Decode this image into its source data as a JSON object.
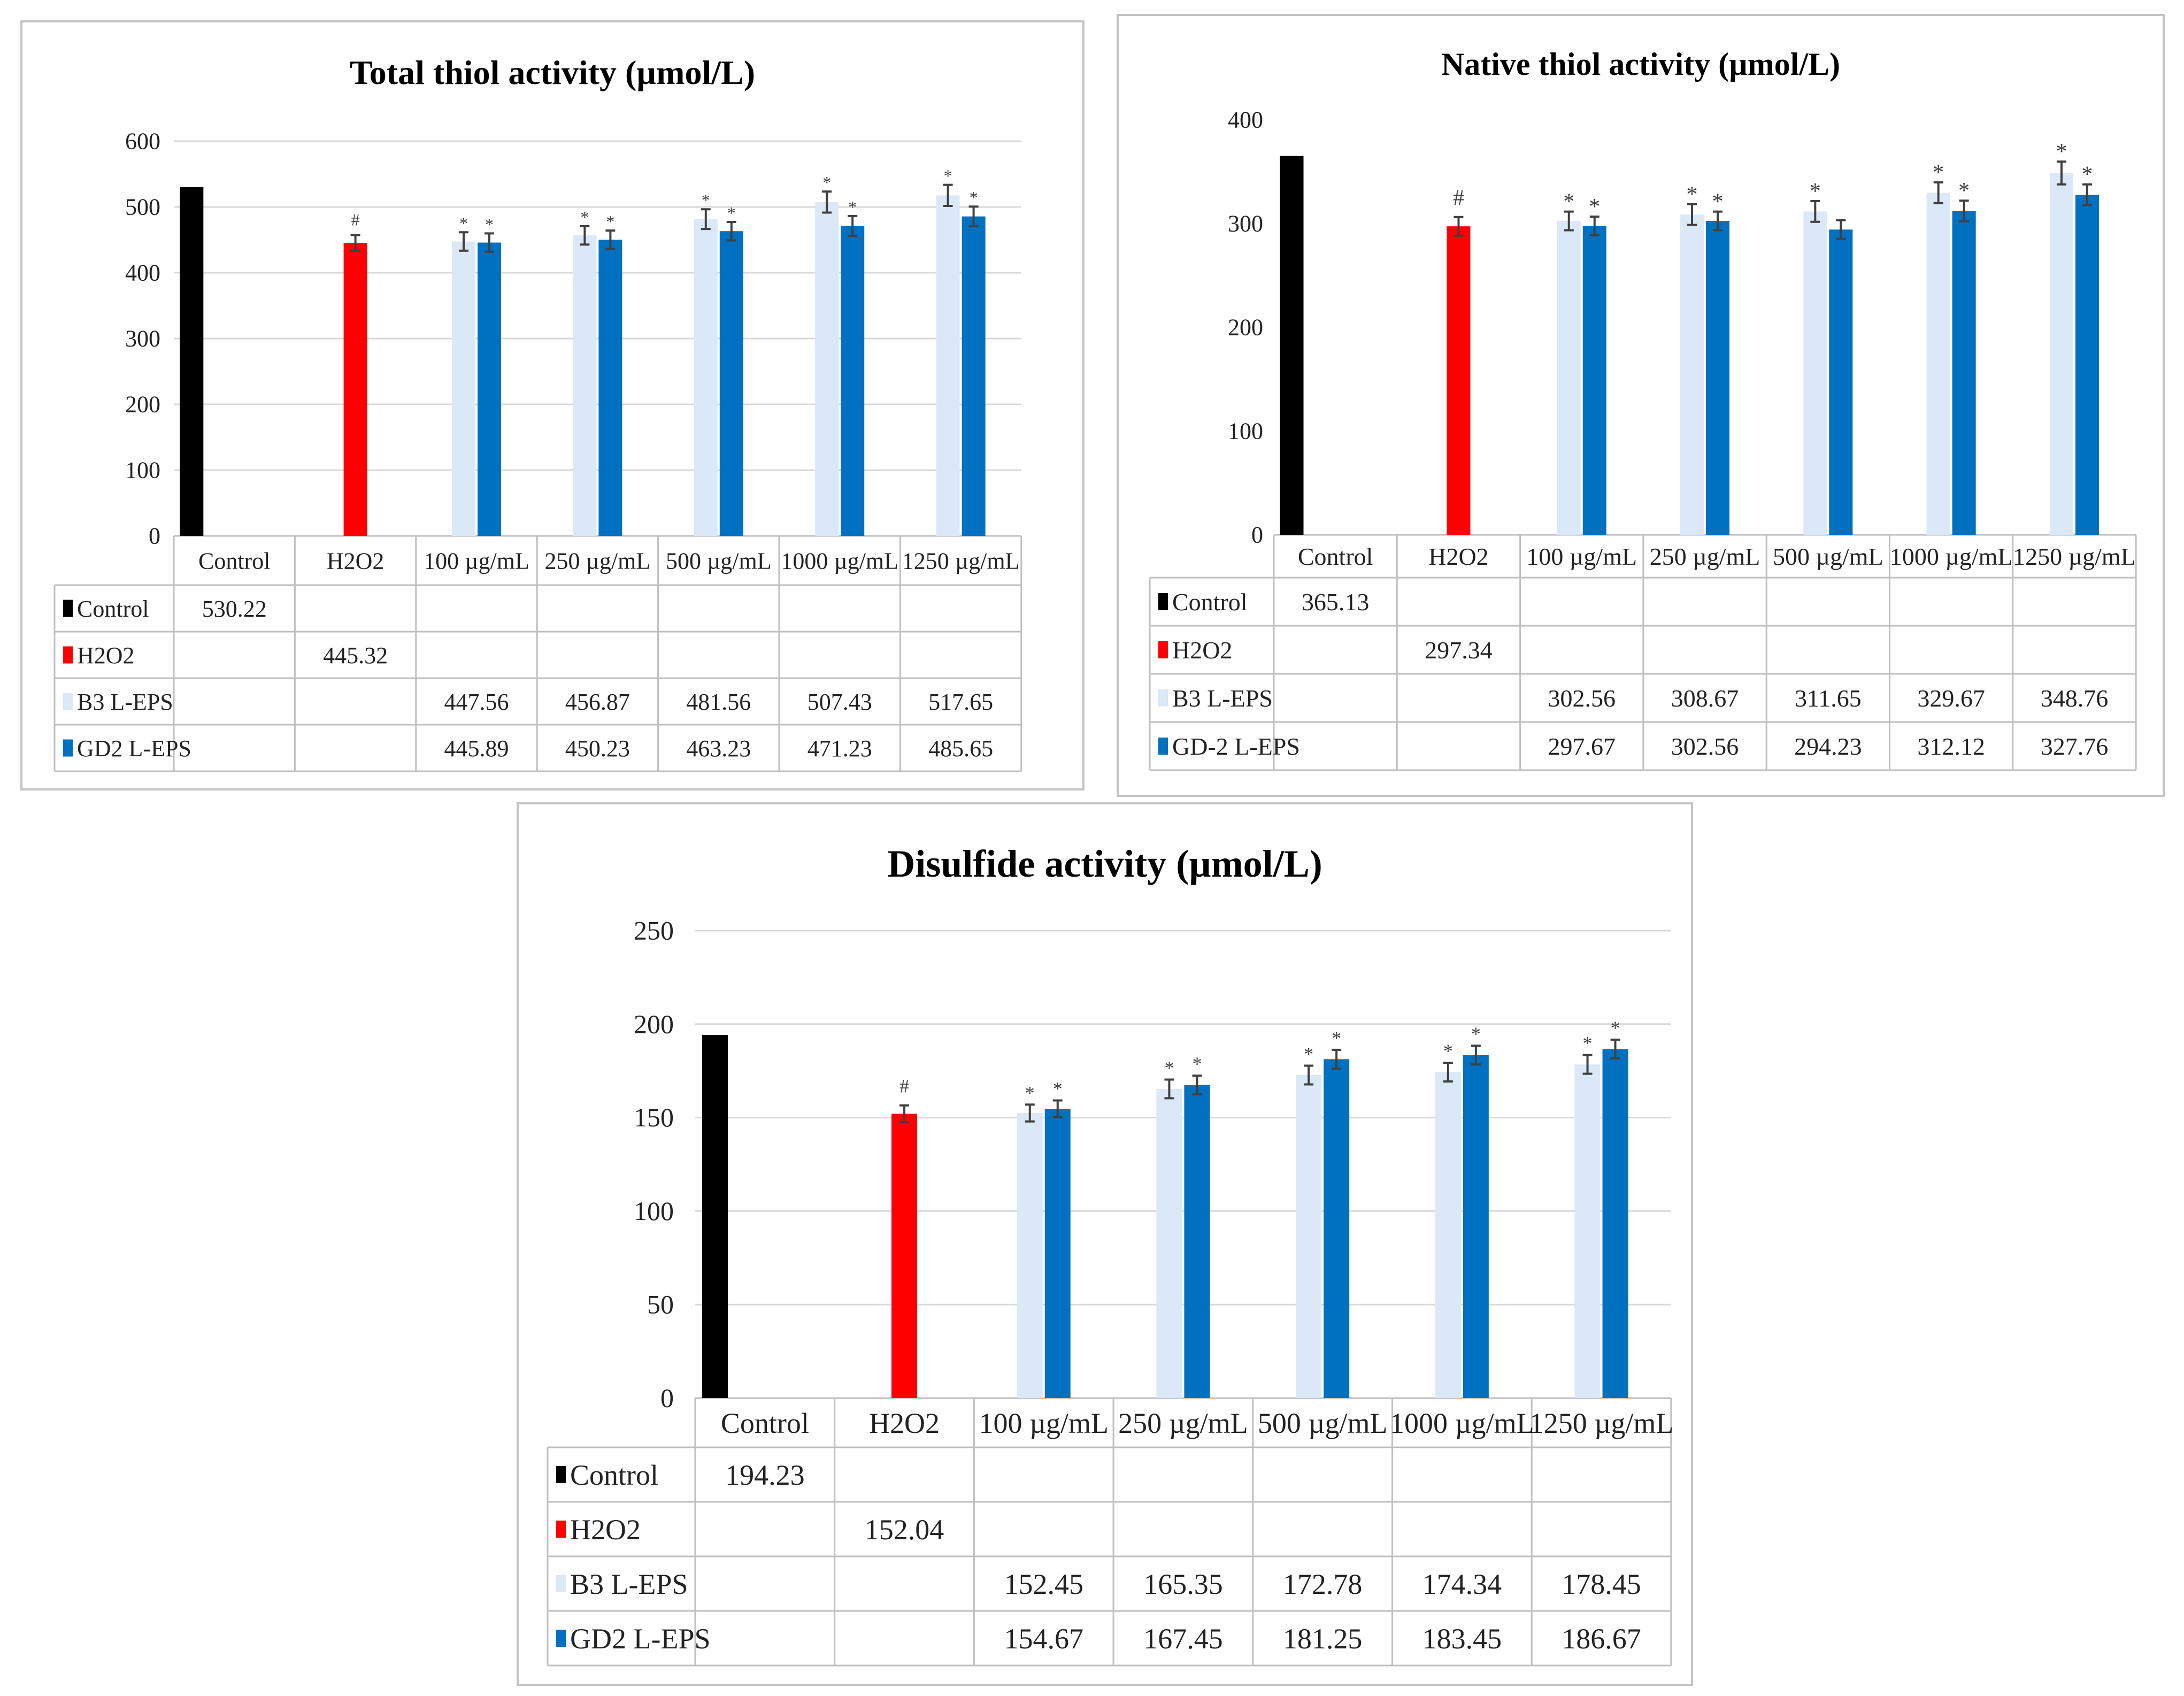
{
  "colors": {
    "Control": "#000000",
    "H2O2": "#ff0000",
    "B3": "#dae8f7",
    "GD2": "#0070c0"
  },
  "chart_data": [
    {
      "type": "bar",
      "title": "Total thiol activity (µmol/L)",
      "categories": [
        "Control",
        "H2O2",
        "100 µg/mL",
        "250 µg/mL",
        "500 µg/mL",
        "1000 µg/mL",
        "1250 µg/mL"
      ],
      "ylim": [
        0,
        600
      ],
      "yticks": [
        0,
        100,
        200,
        300,
        400,
        500,
        600
      ],
      "grid": true,
      "series": [
        {
          "name": "Control",
          "values": [
            530.22,
            null,
            null,
            null,
            null,
            null,
            null
          ],
          "labels": [
            "530.22",
            "",
            "",
            "",
            "",
            "",
            ""
          ],
          "marks": [
            "",
            "",
            "",
            "",
            "",
            "",
            ""
          ],
          "errors": [
            null,
            null,
            null,
            null,
            null,
            null,
            null
          ]
        },
        {
          "name": "H2O2",
          "values": [
            null,
            445.32,
            null,
            null,
            null,
            null,
            null
          ],
          "labels": [
            "",
            "445.32",
            "",
            "",
            "",
            "",
            ""
          ],
          "marks": [
            "",
            "#",
            "",
            "",
            "",
            "",
            ""
          ],
          "errors": [
            null,
            12,
            null,
            null,
            null,
            null,
            null
          ]
        },
        {
          "name": "B3 L-EPS",
          "values": [
            null,
            null,
            447.56,
            456.87,
            481.56,
            507.43,
            517.65
          ],
          "labels": [
            "",
            "",
            "447.56",
            "456.87",
            "481.56",
            "507.43",
            "517.65"
          ],
          "marks": [
            "",
            "",
            "*",
            "*",
            "*",
            "*",
            "*"
          ],
          "errors": [
            null,
            null,
            14,
            14,
            15,
            16,
            16
          ]
        },
        {
          "name": "GD2 L-EPS",
          "values": [
            null,
            null,
            445.89,
            450.23,
            463.23,
            471.23,
            485.65
          ],
          "labels": [
            "",
            "",
            "445.89",
            "450.23",
            "463.23",
            "471.23",
            "485.65"
          ],
          "marks": [
            "",
            "",
            "*",
            "*",
            "*",
            "*",
            "*"
          ],
          "errors": [
            null,
            null,
            14,
            14,
            14,
            15,
            15
          ]
        }
      ]
    },
    {
      "type": "bar",
      "title": "Native thiol activity (µmol/L)",
      "categories": [
        "Control",
        "H2O2",
        "100 µg/mL",
        "250 µg/mL",
        "500 µg/mL",
        "1000 µg/mL",
        "1250 µg/mL"
      ],
      "ylim": [
        0,
        400
      ],
      "yticks": [
        0,
        100,
        200,
        300,
        400
      ],
      "grid": false,
      "series": [
        {
          "name": "Control",
          "values": [
            365.13,
            null,
            null,
            null,
            null,
            null,
            null
          ],
          "labels": [
            "365.13",
            "",
            "",
            "",
            "",
            "",
            ""
          ],
          "marks": [
            "",
            "",
            "",
            "",
            "",
            "",
            ""
          ],
          "errors": [
            null,
            null,
            null,
            null,
            null,
            null,
            null
          ]
        },
        {
          "name": "H2O2",
          "values": [
            null,
            297.34,
            null,
            null,
            null,
            null,
            null
          ],
          "labels": [
            "",
            "297.34",
            "",
            "",
            "",
            "",
            ""
          ],
          "marks": [
            "",
            "#",
            "",
            "",
            "",
            "",
            ""
          ],
          "errors": [
            null,
            9,
            null,
            null,
            null,
            null,
            null
          ]
        },
        {
          "name": "B3 L-EPS",
          "values": [
            null,
            null,
            302.56,
            308.67,
            311.65,
            329.67,
            348.76
          ],
          "labels": [
            "",
            "",
            "302.56",
            "308.67",
            "311.65",
            "329.67",
            "348.76"
          ],
          "marks": [
            "",
            "",
            "*",
            "*",
            "*",
            "*",
            "*"
          ],
          "errors": [
            null,
            null,
            9,
            10,
            10,
            10,
            11
          ]
        },
        {
          "name": "GD-2 L-EPS",
          "values": [
            null,
            null,
            297.67,
            302.56,
            294.23,
            312.12,
            327.76
          ],
          "labels": [
            "",
            "",
            "297.67",
            "302.56",
            "294.23",
            "312.12",
            "327.76"
          ],
          "marks": [
            "",
            "",
            "*",
            "*",
            "",
            "*",
            "*"
          ],
          "errors": [
            null,
            null,
            9,
            9,
            9,
            10,
            10
          ]
        }
      ]
    },
    {
      "type": "bar",
      "title": "Disulfide activity  (µmol/L)",
      "categories": [
        "Control",
        "H2O2",
        "100 µg/mL",
        "250 µg/mL",
        "500 µg/mL",
        "1000 µg/mL",
        "1250 µg/mL"
      ],
      "ylim": [
        0,
        250
      ],
      "yticks": [
        0,
        50,
        100,
        150,
        200,
        250
      ],
      "grid": true,
      "series": [
        {
          "name": "Control",
          "values": [
            194.23,
            null,
            null,
            null,
            null,
            null,
            null
          ],
          "labels": [
            "194.23",
            "",
            "",
            "",
            "",
            "",
            ""
          ],
          "marks": [
            "",
            "",
            "",
            "",
            "",
            "",
            ""
          ],
          "errors": [
            null,
            null,
            null,
            null,
            null,
            null,
            null
          ]
        },
        {
          "name": "H2O2",
          "values": [
            null,
            152.04,
            null,
            null,
            null,
            null,
            null
          ],
          "labels": [
            "",
            "152.04",
            "",
            "",
            "",
            "",
            ""
          ],
          "marks": [
            "",
            "#",
            "",
            "",
            "",
            "",
            ""
          ],
          "errors": [
            null,
            4.5,
            null,
            null,
            null,
            null,
            null
          ]
        },
        {
          "name": "B3 L-EPS",
          "values": [
            null,
            null,
            152.45,
            165.35,
            172.78,
            174.34,
            178.45
          ],
          "labels": [
            "",
            "",
            "152.45",
            "165.35",
            "172.78",
            "174.34",
            "178.45"
          ],
          "marks": [
            "",
            "",
            "*",
            "*",
            "*",
            "*",
            "*"
          ],
          "errors": [
            null,
            null,
            4.5,
            5,
            5,
            5,
            5
          ]
        },
        {
          "name": "GD2 L-EPS",
          "values": [
            null,
            null,
            154.67,
            167.45,
            181.25,
            183.45,
            186.67
          ],
          "labels": [
            "",
            "",
            "154.67",
            "167.45",
            "181.25",
            "183.45",
            "186.67"
          ],
          "marks": [
            "",
            "",
            "*",
            "*",
            "*",
            "*",
            "*"
          ],
          "errors": [
            null,
            null,
            4.5,
            5,
            5,
            5,
            5
          ]
        }
      ]
    }
  ]
}
